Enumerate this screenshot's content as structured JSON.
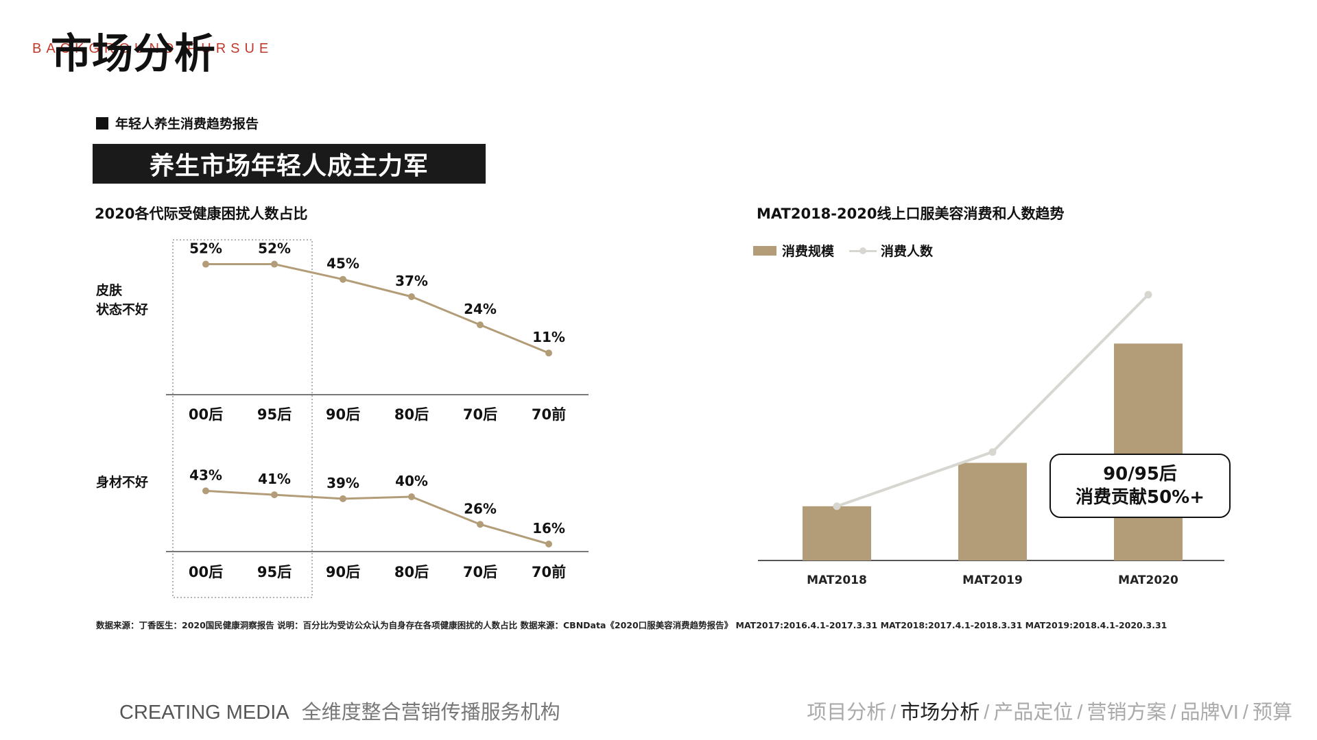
{
  "header": {
    "bg_text": "BACKGROUND PURSUE",
    "title": "市场分析"
  },
  "report_label": "年轻人养生消费趋势报告",
  "banner": "养生市场年轻人成主力军",
  "left_chart": {
    "title": "2020各代际受健康困扰人数占比"
  },
  "right_chart": {
    "title": "MAT2018-2020线上口服美容消费和人数趋势",
    "legend_bar": "消费规模",
    "legend_line": "消费人数",
    "note_line1": "90/95后",
    "note_line2": "消费贡献50%+"
  },
  "chart_data": [
    {
      "type": "line",
      "title": "2020各代际受健康困扰人数占比",
      "row_label": "皮肤状态不好",
      "row_label_lines": [
        "皮肤",
        "状态不好"
      ],
      "categories": [
        "00后",
        "95后",
        "90后",
        "80后",
        "70后",
        "70前"
      ],
      "values": [
        52,
        52,
        45,
        37,
        24,
        11
      ],
      "value_labels": [
        "52%",
        "52%",
        "45%",
        "37%",
        "24%",
        "11%"
      ],
      "unit": "%",
      "highlight_categories": [
        "00后",
        "95后"
      ]
    },
    {
      "type": "line",
      "row_label": "身材不好",
      "row_label_lines": [
        "身材不好"
      ],
      "categories": [
        "00后",
        "95后",
        "90后",
        "80后",
        "70后",
        "70前"
      ],
      "values": [
        43,
        41,
        39,
        40,
        26,
        16
      ],
      "value_labels": [
        "43%",
        "41%",
        "39%",
        "40%",
        "26%",
        "16%"
      ],
      "unit": "%",
      "highlight_categories": [
        "00后",
        "95后"
      ]
    },
    {
      "type": "bar",
      "title": "MAT2018-2020线上口服美容消费和人数趋势",
      "categories": [
        "MAT2018",
        "MAT2019",
        "MAT2020"
      ],
      "series": [
        {
          "name": "消费规模",
          "type": "bar",
          "values": [
            1.0,
            1.8,
            4.0
          ]
        },
        {
          "name": "消费人数",
          "type": "line",
          "values": [
            1.0,
            2.0,
            4.9
          ]
        }
      ],
      "ylim": [
        0,
        5
      ],
      "colors": {
        "bar": "#b39c78",
        "line": "#d8d6d0"
      }
    }
  ],
  "source_note": "数据来源：丁香医生：2020国民健康洞察报告   说明：百分比为受访公众认为自身存在各项健康困扰的人数占比   数据来源：CBNData《2020口服美容消费趋势报告》 MAT2017:2016.4.1-2017.3.31   MAT2018:2017.4.1-2018.3.31   MAT2019:2018.4.1-2020.3.31",
  "footer": {
    "brand": "CREATING MEDIA",
    "slogan": "全维度整合营销传播服务机构",
    "nav": [
      {
        "label": "项目分析",
        "active": false
      },
      {
        "label": "市场分析",
        "active": true
      },
      {
        "label": "产品定位",
        "active": false
      },
      {
        "label": "营销方案",
        "active": false
      },
      {
        "label": "品牌VI",
        "active": false
      },
      {
        "label": "预算",
        "active": false
      }
    ]
  },
  "colors": {
    "accent": "#b39c78",
    "line_light": "#d8d6d0",
    "bg_text": "#c0392b",
    "banner_bg": "#1a1a1a"
  }
}
